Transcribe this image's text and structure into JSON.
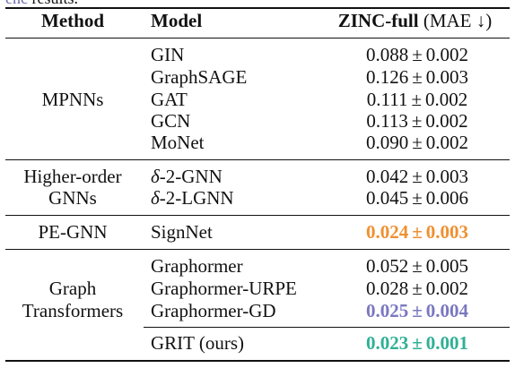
{
  "cut_off_text": {
    "cite": "enc",
    "rest": " results."
  },
  "table": {
    "headers": {
      "method": "Method",
      "model": "Model",
      "metric": "ZINC-full",
      "metric_unit": "(MAE ↓)"
    },
    "groups": [
      {
        "method": "MPNNs",
        "rows": [
          {
            "model": "GIN",
            "mean": "0.088",
            "pm": "±",
            "std": "0.002"
          },
          {
            "model": "GraphSAGE",
            "mean": "0.126",
            "pm": "±",
            "std": "0.003"
          },
          {
            "model": "GAT",
            "mean": "0.111",
            "pm": "±",
            "std": "0.002"
          },
          {
            "model": "GCN",
            "mean": "0.113",
            "pm": "±",
            "std": "0.002"
          },
          {
            "model": "MoNet",
            "mean": "0.090",
            "pm": "±",
            "std": "0.002"
          }
        ]
      },
      {
        "method_line1": "Higher-order",
        "method_line2": "GNNs",
        "rows": [
          {
            "model": "δ-2-GNN",
            "mean": "0.042",
            "pm": "±",
            "std": "0.003"
          },
          {
            "model": "δ-2-LGNN",
            "mean": "0.045",
            "pm": "±",
            "std": "0.006"
          }
        ]
      },
      {
        "method": "PE-GNN",
        "rows": [
          {
            "model": "SignNet",
            "mean": "0.024",
            "pm": "±",
            "std": "0.003",
            "highlight": "second"
          }
        ]
      },
      {
        "method_line1": "Graph",
        "method_line2": "Transformers",
        "rows": [
          {
            "model": "Graphormer",
            "mean": "0.052",
            "pm": "±",
            "std": "0.005"
          },
          {
            "model": "Graphormer-URPE",
            "mean": "0.028",
            "pm": "±",
            "std": "0.002"
          },
          {
            "model": "Graphormer-GD",
            "mean": "0.025",
            "pm": "±",
            "std": "0.004",
            "highlight": "third"
          },
          {
            "model": "GRIT (ours)",
            "mean": "0.023",
            "pm": "±",
            "std": "0.001",
            "highlight": "best"
          }
        ]
      }
    ],
    "highlight_colors": {
      "best": "#2fb095",
      "second": "#f09030",
      "third": "#7a78c0"
    }
  }
}
